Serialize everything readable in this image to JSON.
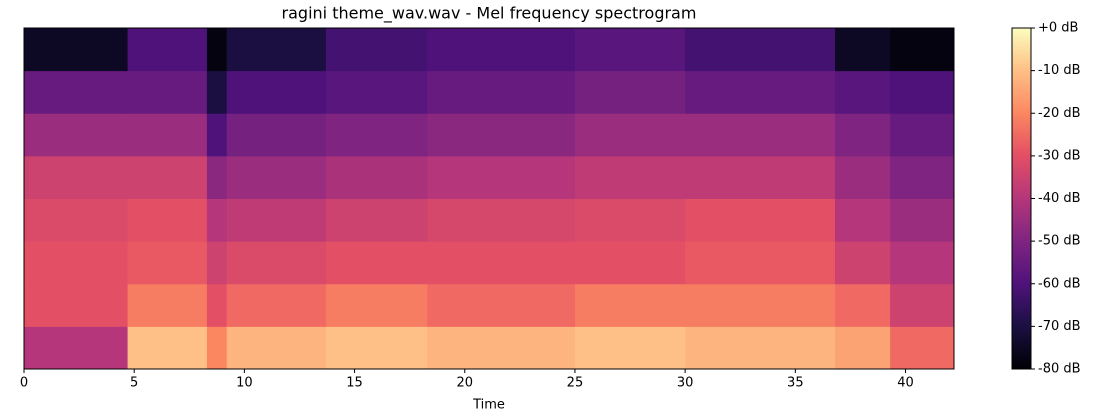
{
  "chart_data": {
    "type": "heatmap",
    "title": "ragini theme_wav.wav - Mel frequency spectrogram",
    "x_label": "Time",
    "colormap": "magma",
    "xlim": [
      0,
      42.2
    ],
    "xticks": [
      0,
      5,
      10,
      15,
      20,
      25,
      30,
      35,
      40
    ],
    "time_bins": [
      0,
      4.7,
      8.3,
      9.2,
      13.7,
      18.3,
      25,
      30,
      36.8,
      39.3,
      42.2
    ],
    "values": [
      [
        -40,
        -30,
        -30,
        -32,
        -35,
        -45,
        -55,
        -75
      ],
      [
        -10,
        -22,
        -28,
        -30,
        -35,
        -45,
        -55,
        -60
      ],
      [
        -20,
        -30,
        -35,
        -40,
        -48,
        -60,
        -70,
        -78
      ],
      [
        -12,
        -25,
        -32,
        -38,
        -45,
        -52,
        -60,
        -70
      ],
      [
        -10,
        -22,
        -30,
        -35,
        -42,
        -50,
        -58,
        -62
      ],
      [
        -12,
        -25,
        -30,
        -33,
        -40,
        -48,
        -55,
        -60
      ],
      [
        -10,
        -22,
        -30,
        -32,
        -38,
        -45,
        -52,
        -58
      ],
      [
        -12,
        -22,
        -28,
        -30,
        -38,
        -45,
        -55,
        -62
      ],
      [
        -15,
        -25,
        -35,
        -40,
        -45,
        -50,
        -58,
        -75
      ],
      [
        -25,
        -35,
        -40,
        -45,
        -50,
        -55,
        -60,
        -78
      ]
    ],
    "colorbar": {
      "lim": [
        -80,
        0
      ],
      "ticks": [
        {
          "value": 0,
          "label": "+0 dB"
        },
        {
          "value": -10,
          "label": "-10 dB"
        },
        {
          "value": -20,
          "label": "-20 dB"
        },
        {
          "value": -30,
          "label": "-30 dB"
        },
        {
          "value": -40,
          "label": "-40 dB"
        },
        {
          "value": -50,
          "label": "-50 dB"
        },
        {
          "value": -60,
          "label": "-60 dB"
        },
        {
          "value": -70,
          "label": "-70 dB"
        },
        {
          "value": -80,
          "label": "-80 dB"
        }
      ]
    }
  }
}
